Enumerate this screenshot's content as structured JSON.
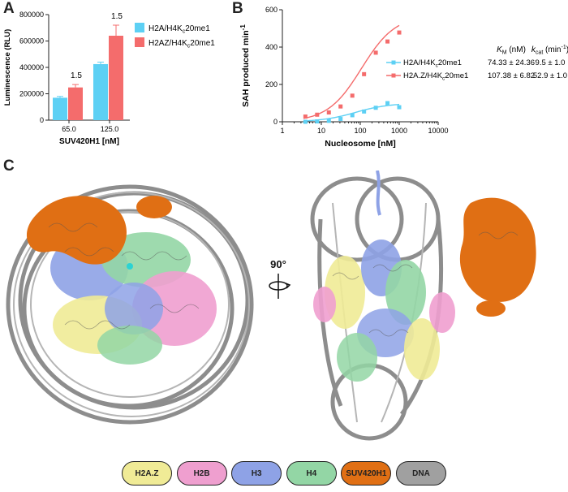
{
  "panels": {
    "a": "A",
    "b": "B",
    "c": "C"
  },
  "chart_data": [
    {
      "type": "bar",
      "xlabel": "SUV420H1 [nM]",
      "ylabel": "Luminescence (RLU)",
      "ylim": [
        0,
        800000
      ],
      "yticks": [
        0,
        200000,
        400000,
        600000,
        800000
      ],
      "categories": [
        "65.0",
        "125.0"
      ],
      "series": [
        {
          "name": "H2A/H4K",
          "subscript": "c",
          "name_suffix": "20me1",
          "color": "#5dd0f4",
          "values": [
            170000,
            425000
          ],
          "errors": [
            10000,
            15000
          ]
        },
        {
          "name": "H2AZ/H4K",
          "subscript": "c",
          "name_suffix": "20me1",
          "color": "#f46c6c",
          "values": [
            248000,
            640000
          ],
          "errors": [
            22000,
            80000
          ]
        }
      ],
      "annotations": [
        "1.5",
        "1.5"
      ],
      "legend_position": "right"
    },
    {
      "type": "line",
      "xlabel": "Nucleosome [nM]",
      "ylabel": "SAH produced min",
      "ylabel_superscript": "-1",
      "xscale": "log",
      "xlim": [
        1,
        10000
      ],
      "xticks": [
        1,
        10,
        100,
        1000,
        10000
      ],
      "ylim": [
        0,
        600
      ],
      "yticks": [
        0,
        200,
        400,
        600
      ],
      "series": [
        {
          "name": "H2A/H4K",
          "subscript": "c",
          "name_suffix": "20me1",
          "color": "#5dd0f4",
          "points": [
            [
              3.9,
              0
            ],
            [
              7.8,
              2
            ],
            [
              15.6,
              5
            ],
            [
              31.2,
              15
            ],
            [
              62.5,
              35
            ],
            [
              125,
              55
            ],
            [
              250,
              75
            ],
            [
              500,
              100
            ],
            [
              1000,
              78
            ]
          ],
          "fit": {
            "km": 74.33,
            "kcat": 9.5
          },
          "km_text": "74.33 ± 24.36",
          "kcat_text": "9.5 ± 1.0"
        },
        {
          "name": "H2A.Z/H4K",
          "subscript": "c",
          "name_suffix": "20me1",
          "color": "#f46c6c",
          "points": [
            [
              3.9,
              28
            ],
            [
              7.8,
              38
            ],
            [
              15.6,
              50
            ],
            [
              31.2,
              82
            ],
            [
              62.5,
              140
            ],
            [
              125,
              255
            ],
            [
              250,
              370
            ],
            [
              500,
              430
            ],
            [
              1000,
              478
            ]
          ],
          "fit": {
            "km": 107.38,
            "kcat": 52.9
          },
          "km_text": "107.38 ± 6.82",
          "kcat_text": "52.9 ± 1.0"
        }
      ],
      "table_headers": {
        "km_main": "K",
        "km_sub": "M",
        "km_unit": " (nM)",
        "kcat_main": "k",
        "kcat_sub": "cat",
        "kcat_unit": " (min",
        "kcat_sup": "-1",
        "kcat_close": ")"
      }
    }
  ],
  "rotation_label": "90°",
  "legend": [
    {
      "label": "H2A.Z",
      "color": "#f0eb96"
    },
    {
      "label": "H2B",
      "color": "#ef9fcf"
    },
    {
      "label": "H3",
      "color": "#8ea2e6"
    },
    {
      "label": "H4",
      "color": "#93d6a5"
    },
    {
      "label": "SUV420H1",
      "color": "#e06f14"
    },
    {
      "label": "DNA",
      "color": "#a0a0a0"
    }
  ]
}
